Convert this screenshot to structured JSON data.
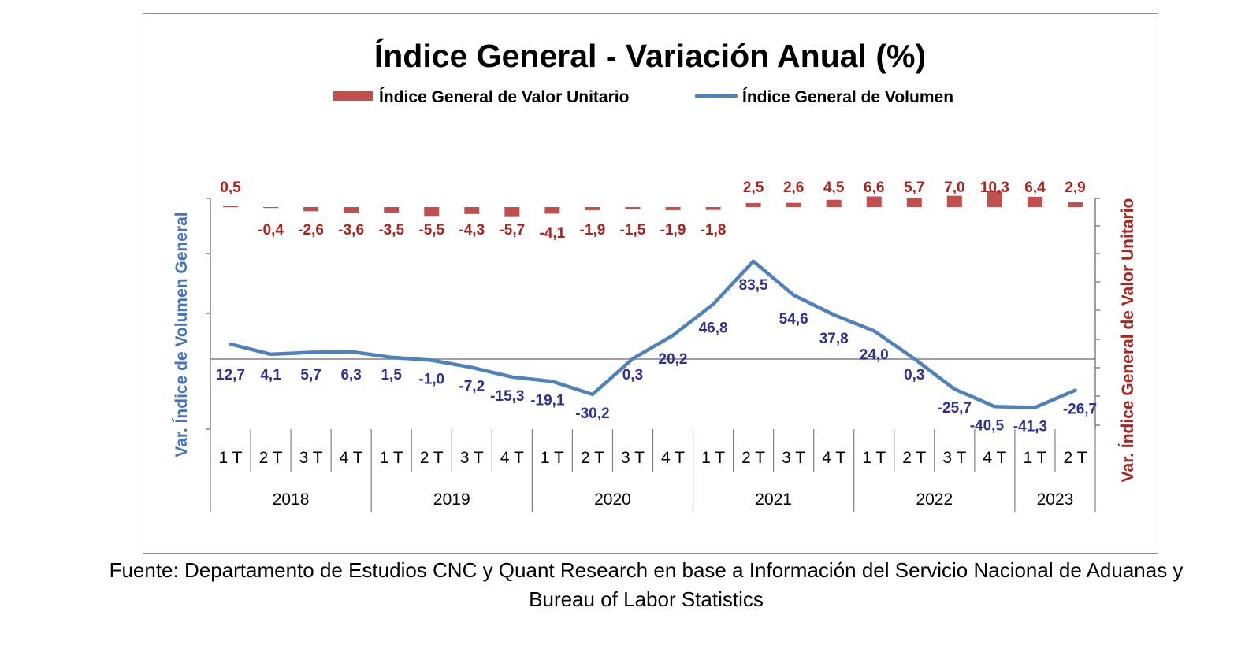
{
  "source_note": "Fuente: Departamento de Estudios CNC y Quant Research en base a Información del Servicio Nacional de Aduanas y Bureau of Labor Statistics",
  "chart_data": {
    "type": "bar",
    "title": "Índice General - Variación Anual (%)",
    "categories": [
      "1 T",
      "2 T",
      "3 T",
      "4 T",
      "1 T",
      "2 T",
      "3 T",
      "4 T",
      "1 T",
      "2 T",
      "3 T",
      "4 T",
      "1 T",
      "2 T",
      "3 T",
      "4 T",
      "1 T",
      "2 T",
      "3 T",
      "4 T",
      "1 T",
      "2 T"
    ],
    "groups": [
      {
        "label": "2018",
        "count": 4
      },
      {
        "label": "2019",
        "count": 4
      },
      {
        "label": "2020",
        "count": 4
      },
      {
        "label": "2021",
        "count": 4
      },
      {
        "label": "2022",
        "count": 4
      },
      {
        "label": "2023",
        "count": 2
      }
    ],
    "ylabel_left": "Var. Índice de Volumen General",
    "ylabel_right": "Var. Índice General de Valor Unitario",
    "legend_position": "top",
    "series": [
      {
        "name": "Índice General de Valor Unitario",
        "type": "bar",
        "axis": "right",
        "color": "#c0504d",
        "values": [
          0.5,
          -0.4,
          -2.6,
          -3.6,
          -3.5,
          -5.5,
          -4.3,
          -5.7,
          -4.1,
          -1.9,
          -1.5,
          -1.9,
          -1.8,
          2.5,
          2.6,
          4.5,
          6.6,
          5.7,
          7.0,
          10.3,
          6.4,
          2.9
        ],
        "labels": [
          "0,5",
          "-0,4",
          "-2,6",
          "-3,6",
          "-3,5",
          "-5,5",
          "-4,3",
          "-5,7",
          "-4,1",
          "-1,9",
          "-1,5",
          "-1,9",
          "-1,8",
          "2,5",
          "2,6",
          "4,5",
          "6,6",
          "5,7",
          "7,0",
          "10,3",
          "6,4",
          "2,9"
        ]
      },
      {
        "name": "Índice General de Volumen",
        "type": "line",
        "axis": "left",
        "color": "#4f81bd",
        "values": [
          12.7,
          4.1,
          5.7,
          6.3,
          1.5,
          -1.0,
          -7.2,
          -15.3,
          -19.1,
          -30.2,
          0.3,
          20.2,
          46.8,
          83.5,
          54.6,
          37.8,
          24.0,
          0.3,
          -25.7,
          -40.5,
          -41.3,
          -26.7
        ],
        "labels": [
          "12,7",
          "4,1",
          "5,7",
          "6,3",
          "1,5",
          "-1,0",
          "-7,2",
          "-15,3",
          "-19,1",
          "-30,2",
          "0,3",
          "20,2",
          "46,8",
          "83,5",
          "54,6",
          "37,8",
          "24,0",
          "0,3",
          "-25,7",
          "-40,5",
          "-41,3",
          "-26,7"
        ]
      }
    ]
  }
}
